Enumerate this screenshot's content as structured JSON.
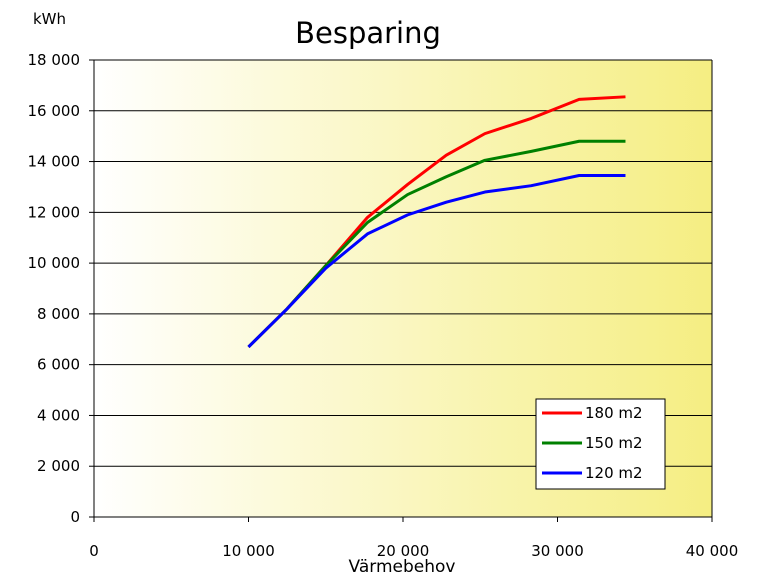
{
  "chart_data": {
    "type": "line",
    "title": "Besparing",
    "xlabel": "Värmebehov",
    "ylabel": "kWh",
    "xlim": [
      0,
      40000
    ],
    "ylim": [
      0,
      18000
    ],
    "x_ticks": [
      "0",
      "10 000",
      "20 000",
      "30 000",
      "40 000"
    ],
    "y_ticks": [
      "0",
      "2 000",
      "4 000",
      "6 000",
      "8 000",
      "10 000",
      "12 000",
      "14 000",
      "16 000",
      "18 000"
    ],
    "x_tick_values": [
      0,
      10000,
      20000,
      30000,
      40000
    ],
    "y_tick_values": [
      0,
      2000,
      4000,
      6000,
      8000,
      10000,
      12000,
      14000,
      16000,
      18000
    ],
    "grid": "horizontal",
    "legend_position": "bottom-right",
    "background": "white-to-yellow gradient",
    "series": [
      {
        "name": "180 m2",
        "color": "#ff0000",
        "x": [
          10000,
          12500,
          15000,
          17700,
          20300,
          22800,
          25300,
          28300,
          31400,
          34400
        ],
        "y": [
          6700,
          8200,
          9900,
          11800,
          13100,
          14250,
          15100,
          15700,
          16450,
          16550
        ]
      },
      {
        "name": "150 m2",
        "color": "#008000",
        "x": [
          10000,
          12500,
          15000,
          17700,
          20300,
          22800,
          25300,
          28300,
          31400,
          34400
        ],
        "y": [
          6700,
          8200,
          9900,
          11600,
          12700,
          13400,
          14050,
          14400,
          14800,
          14800
        ]
      },
      {
        "name": "120 m2",
        "color": "#0000ff",
        "x": [
          10000,
          12500,
          15000,
          17700,
          20300,
          22800,
          25300,
          28300,
          31400,
          34400
        ],
        "y": [
          6700,
          8200,
          9800,
          11150,
          11900,
          12400,
          12800,
          13050,
          13450,
          13450
        ]
      }
    ]
  }
}
